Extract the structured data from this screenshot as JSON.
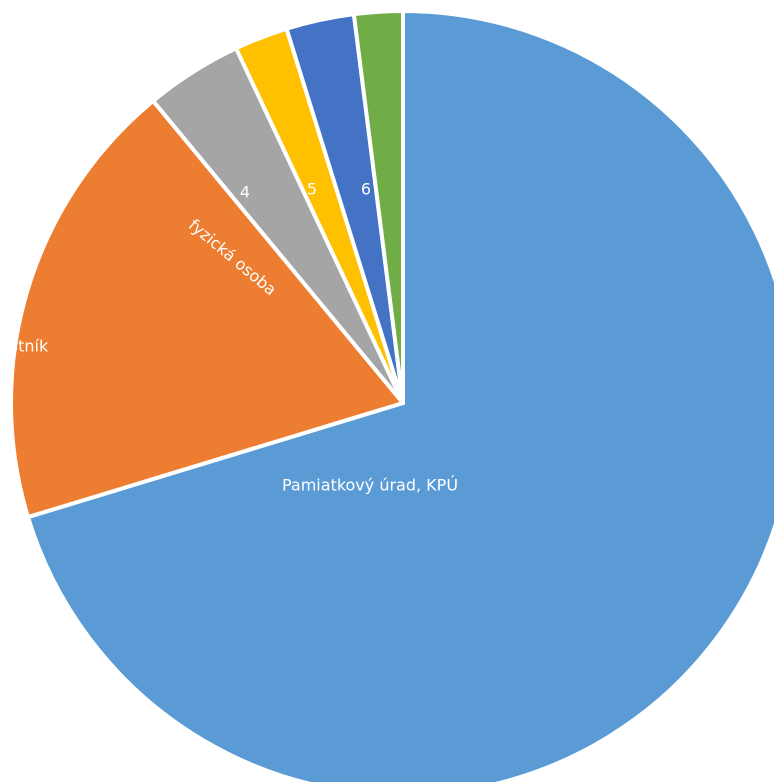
{
  "chart_data": {
    "type": "pie",
    "categories": [
      "Pamiatkový úrad, KPÚ",
      "astník",
      "4",
      "5",
      "6",
      null
    ],
    "values": [
      70.3,
      18.7,
      4.0,
      2.2,
      2.8,
      2.0
    ],
    "colors": [
      "#5b9bd5",
      "#ed7d31",
      "#a5a5a5",
      "#ffc000",
      "#4472c4",
      "#70ad47"
    ],
    "annotations": [
      "fyzická osoba"
    ]
  }
}
